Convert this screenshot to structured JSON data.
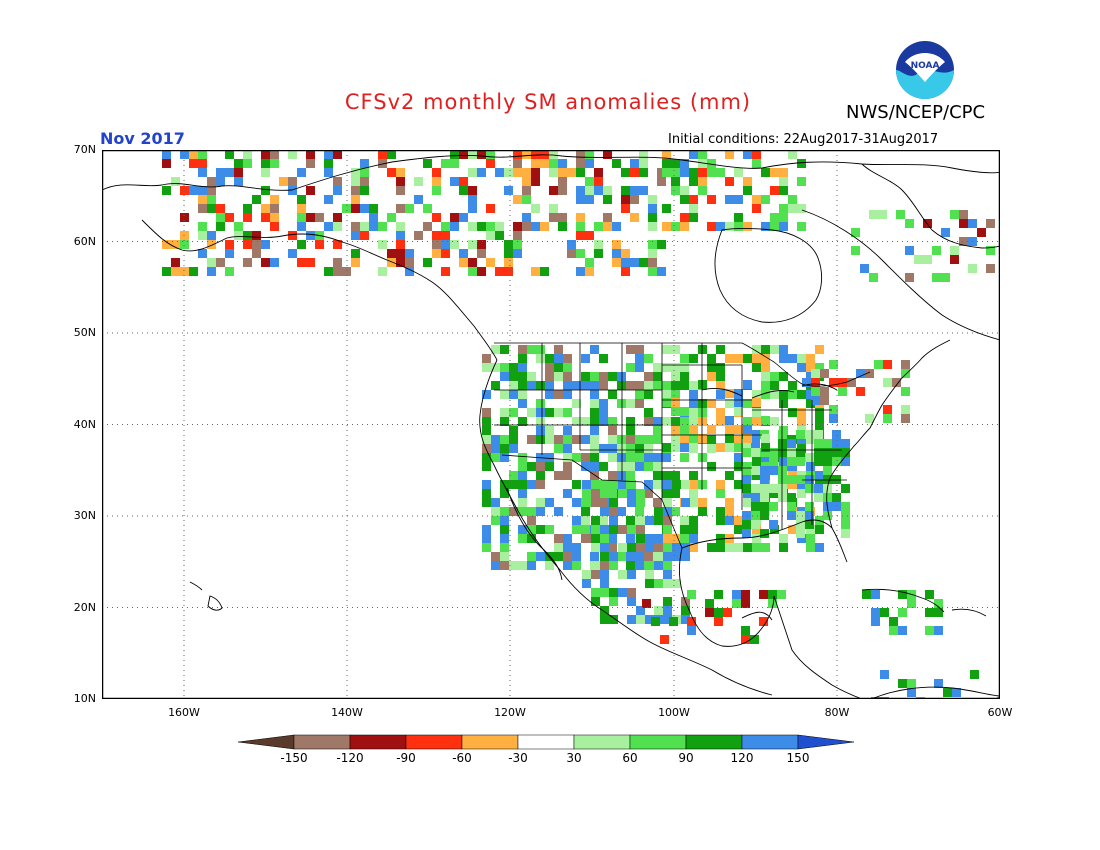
{
  "title": "CFSv2 monthly SM anomalies (mm)",
  "org_label": "NWS/NCEP/CPC",
  "logo_text": "NOAA",
  "month_label": "Nov 2017",
  "initial_conditions": "Initial conditions: 22Aug2017-31Aug2017",
  "lat_labels": [
    "70N",
    "60N",
    "50N",
    "40N",
    "30N",
    "20N",
    "10N"
  ],
  "lon_labels": [
    "160W",
    "140W",
    "120W",
    "100W",
    "80W",
    "60W"
  ],
  "colorbar": {
    "labels": [
      "-150",
      "-120",
      "-90",
      "-60",
      "-30",
      "30",
      "60",
      "90",
      "120",
      "150"
    ],
    "colors": [
      "#5a3a2a",
      "#a07868",
      "#a01010",
      "#ff3010",
      "#ffb040",
      "#ffffff",
      "#a8f0a0",
      "#50e050",
      "#10a010",
      "#3c8ce8",
      "#2050d0"
    ]
  }
}
